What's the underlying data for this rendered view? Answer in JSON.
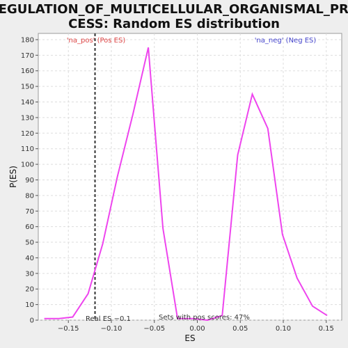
{
  "chart_data": {
    "type": "line",
    "title_line1": "REGULATION_OF_MULTICELLULAR_ORGANISMAL_PRO",
    "title_line2": "CESS: Random ES distribution",
    "xlabel": "ES",
    "ylabel": "P(ES)",
    "xlim": [
      -0.185,
      0.168
    ],
    "ylim": [
      0,
      184
    ],
    "x_ticks": [
      -0.15,
      -0.1,
      -0.05,
      0.0,
      0.05,
      0.1,
      0.15
    ],
    "x_tick_labels": [
      "−0.15",
      "−0.10",
      "−0.05",
      "0.00",
      "0.05",
      "0.10",
      "0.15"
    ],
    "y_ticks": [
      0,
      10,
      20,
      30,
      40,
      50,
      60,
      70,
      80,
      90,
      100,
      110,
      120,
      130,
      140,
      150,
      160,
      170,
      180
    ],
    "grid": true,
    "series": [
      {
        "color": "#ee44ee",
        "x": [
          -0.178,
          -0.161,
          -0.145,
          -0.127,
          -0.11,
          -0.093,
          -0.075,
          -0.057,
          -0.04,
          -0.023,
          -0.005,
          0.012,
          0.029,
          0.047,
          0.064,
          0.082,
          0.099,
          0.116,
          0.134,
          0.151
        ],
        "y": [
          1,
          1,
          2,
          17,
          49,
          92,
          132,
          175,
          59,
          1,
          1,
          0,
          3,
          106,
          145,
          123,
          55,
          27,
          9,
          3
        ]
      }
    ],
    "real_es": -0.1,
    "real_es_label": "Real ES −0.1",
    "pos_label": "'na_pos' (Pos ES)",
    "neg_label": "'na_neg' (Neg ES)",
    "pos_label_color": "#dd4444",
    "neg_label_color": "#4444cc",
    "sets_text": "Sets with pos scores: 47%"
  }
}
